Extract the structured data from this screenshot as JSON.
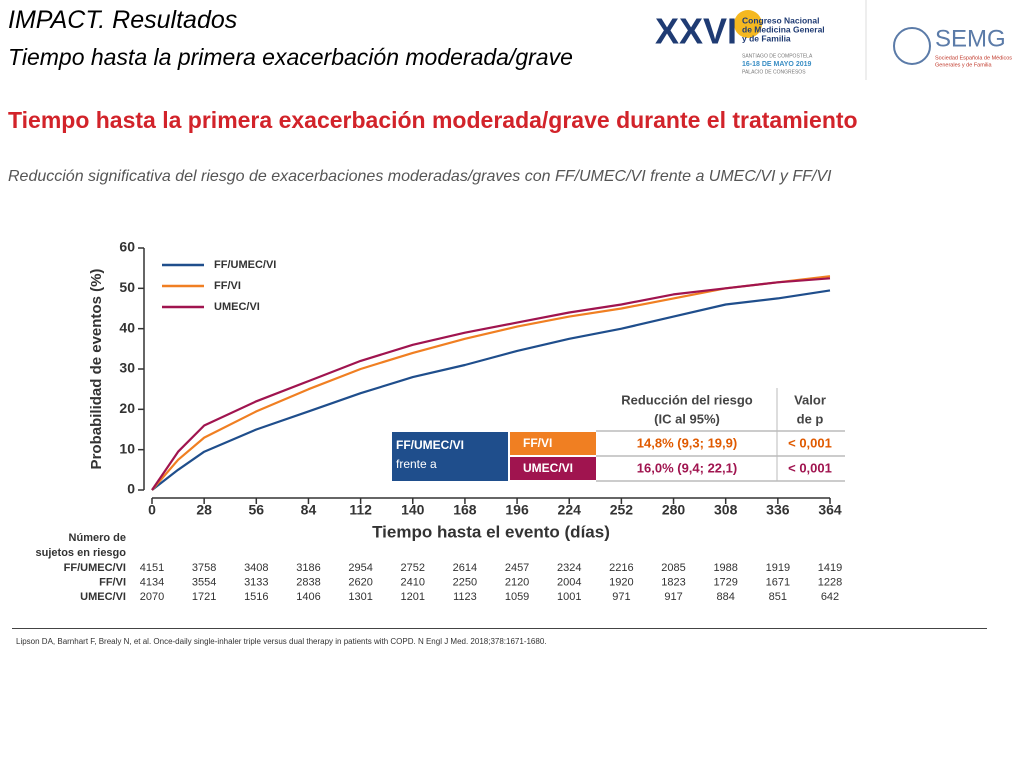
{
  "header": {
    "title": "IMPACT. Resultados",
    "subtitle": "Tiempo hasta la primera exacerbación moderada/grave"
  },
  "logos": {
    "congress_number": "XXVI",
    "congress_name": [
      "Congreso Nacional",
      "de Medicina General",
      "y de Familia"
    ],
    "city": "SANTIAGO DE COMPOSTELA",
    "dates": "16-18 DE MAYO 2019",
    "venue": "PALACIO DE CONGRESOS",
    "society": "SEMG",
    "society_name": [
      "Sociedad Española de Médicos",
      "Generales y de Familia"
    ]
  },
  "chart_data": {
    "type": "line",
    "title": "Tiempo hasta la primera exacerbación moderada/grave durante el tratamiento",
    "subtitle": "Reducción significativa del riesgo de exacerbaciones moderadas/graves con FF/UMEC/VI frente a UMEC/VI y FF/VI",
    "x_label": "Tiempo hasta el evento (días)",
    "y_label": "Probabilidad de eventos (%)",
    "x": [
      0,
      14,
      28,
      56,
      84,
      112,
      140,
      168,
      196,
      224,
      252,
      280,
      308,
      336,
      364
    ],
    "xlim": [
      0,
      364
    ],
    "xticks": [
      0,
      28,
      56,
      84,
      112,
      140,
      168,
      196,
      224,
      252,
      280,
      308,
      336,
      364
    ],
    "ylim": [
      0,
      60
    ],
    "yticks": [
      0,
      10,
      20,
      30,
      40,
      50,
      60
    ],
    "legend": "upper left",
    "series": [
      {
        "name": "FF/UMEC/VI",
        "color": "#1f4e8c",
        "values": [
          0,
          5,
          9.5,
          15,
          19.5,
          24,
          28,
          31,
          34.5,
          37.5,
          40,
          43,
          46,
          47.5,
          49.5
        ]
      },
      {
        "name": "FF/VI",
        "color": "#f07f22",
        "values": [
          0,
          7.5,
          13,
          19.5,
          25,
          30,
          34,
          37.5,
          40.5,
          43,
          45,
          47.5,
          50,
          51.5,
          53
        ]
      },
      {
        "name": "UMEC/VI",
        "color": "#a0144f",
        "values": [
          0,
          9.5,
          16,
          22,
          27,
          32,
          36,
          39,
          41.5,
          44,
          46,
          48.5,
          50,
          51.5,
          52.5
        ]
      }
    ],
    "hazard_table": {
      "reference": [
        "FF/UMEC/VI",
        "frente a"
      ],
      "header_reduction": [
        "Reducción del riesgo",
        "(IC al 95%)"
      ],
      "header_p": [
        "Valor",
        "de p"
      ],
      "rows": [
        {
          "label": "FF/VI",
          "reduction": "14,8% (9,3; 19,9)",
          "p": "< 0,001"
        },
        {
          "label": "UMEC/VI",
          "reduction": "16,0% (9,4; 22,1)",
          "p": "< 0,001"
        }
      ]
    },
    "at_risk": {
      "header": [
        "Número de",
        "sujetos en riesgo"
      ],
      "rows": [
        {
          "name": "FF/UMEC/VI",
          "values": [
            4151,
            3758,
            3408,
            3186,
            2954,
            2752,
            2614,
            2457,
            2324,
            2216,
            2085,
            1988,
            1919,
            1419
          ]
        },
        {
          "name": "FF/VI",
          "values": [
            4134,
            3554,
            3133,
            2838,
            2620,
            2410,
            2250,
            2120,
            2004,
            1920,
            1823,
            1729,
            1671,
            1228
          ]
        },
        {
          "name": "UMEC/VI",
          "values": [
            2070,
            1721,
            1516,
            1406,
            1301,
            1201,
            1123,
            1059,
            1001,
            971,
            917,
            884,
            851,
            642
          ]
        }
      ]
    }
  },
  "reference": "Lipson DA, Barnhart F, Brealy N, et al. Once-daily single-inhaler triple versus dual therapy in patients with COPD. N Engl J Med. 2018;378:1671-1680."
}
